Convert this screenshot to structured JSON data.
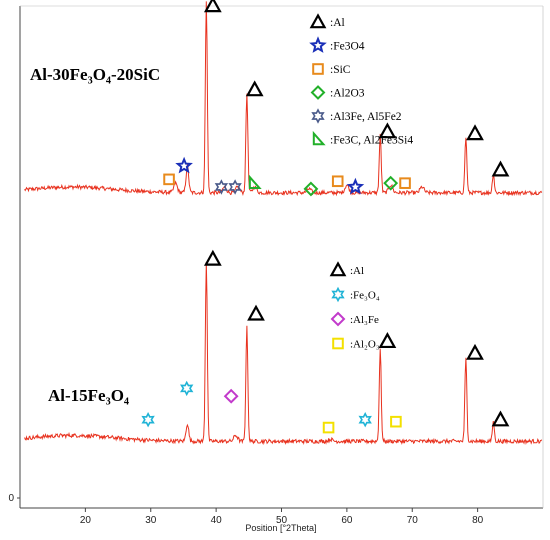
{
  "chart_data": {
    "type": "line",
    "xlabel": "Position [°2Theta]",
    "xlim": [
      10,
      90
    ],
    "xticks": [
      20,
      30,
      40,
      50,
      60,
      70,
      80
    ],
    "yticks": [
      0
    ],
    "line_color": "#e8321f",
    "series": [
      {
        "name": "Al-30Fe3O4-20SiC",
        "baseline": 0.08,
        "noise": 0.01,
        "peaks": [
          {
            "x": 33.8,
            "h": 0.05,
            "w": 0.25
          },
          {
            "x": 35.6,
            "h": 0.14,
            "w": 0.2
          },
          {
            "x": 38.5,
            "h": 1.0,
            "w": 0.15
          },
          {
            "x": 41.3,
            "h": 0.03,
            "w": 0.3
          },
          {
            "x": 43.3,
            "h": 0.03,
            "w": 0.3
          },
          {
            "x": 44.7,
            "h": 0.52,
            "w": 0.15
          },
          {
            "x": 45.9,
            "h": 0.03,
            "w": 0.3
          },
          {
            "x": 54.2,
            "h": 0.02,
            "w": 0.3
          },
          {
            "x": 60.0,
            "h": 0.04,
            "w": 0.3
          },
          {
            "x": 65.1,
            "h": 0.3,
            "w": 0.15
          },
          {
            "x": 66.7,
            "h": 0.04,
            "w": 0.3
          },
          {
            "x": 71.5,
            "h": 0.03,
            "w": 0.3
          },
          {
            "x": 78.2,
            "h": 0.29,
            "w": 0.15
          },
          {
            "x": 82.4,
            "h": 0.1,
            "w": 0.15
          }
        ],
        "markers": [
          {
            "x": 39.5,
            "y": 1.06,
            "shape": "triangle",
            "color": "#000000"
          },
          {
            "x": 45.9,
            "y": 0.62,
            "shape": "triangle",
            "color": "#000000"
          },
          {
            "x": 66.2,
            "y": 0.4,
            "shape": "triangle",
            "color": "#000000"
          },
          {
            "x": 79.6,
            "y": 0.39,
            "shape": "triangle",
            "color": "#000000"
          },
          {
            "x": 83.5,
            "y": 0.2,
            "shape": "triangle",
            "color": "#000000"
          },
          {
            "x": 35.1,
            "y": 0.22,
            "shape": "star",
            "color": "#1a2fb8"
          },
          {
            "x": 61.3,
            "y": 0.11,
            "shape": "star",
            "color": "#1a2fb8"
          },
          {
            "x": 32.8,
            "y": 0.15,
            "shape": "square",
            "color": "#e88a1c"
          },
          {
            "x": 58.6,
            "y": 0.14,
            "shape": "square",
            "color": "#e88a1c"
          },
          {
            "x": 68.9,
            "y": 0.13,
            "shape": "square",
            "color": "#e88a1c"
          },
          {
            "x": 54.5,
            "y": 0.1,
            "shape": "diamond",
            "color": "#22b02a"
          },
          {
            "x": 66.7,
            "y": 0.13,
            "shape": "diamond",
            "color": "#22b02a"
          },
          {
            "x": 40.8,
            "y": 0.11,
            "shape": "hexstar",
            "color": "#4a5a8a"
          },
          {
            "x": 42.9,
            "y": 0.11,
            "shape": "hexstar",
            "color": "#4a5a8a"
          },
          {
            "x": 45.8,
            "y": 0.13,
            "shape": "righttri",
            "color": "#22b02a"
          }
        ]
      },
      {
        "name": "Al-15Fe3O4",
        "baseline": 0.07,
        "noise": 0.01,
        "peaks": [
          {
            "x": 35.6,
            "h": 0.09,
            "w": 0.2
          },
          {
            "x": 38.5,
            "h": 0.92,
            "w": 0.15
          },
          {
            "x": 43.0,
            "h": 0.03,
            "w": 0.3
          },
          {
            "x": 44.7,
            "h": 0.58,
            "w": 0.15
          },
          {
            "x": 57.5,
            "h": 0.01,
            "w": 0.3
          },
          {
            "x": 65.1,
            "h": 0.47,
            "w": 0.15
          },
          {
            "x": 78.2,
            "h": 0.42,
            "w": 0.15
          },
          {
            "x": 82.4,
            "h": 0.1,
            "w": 0.15
          }
        ],
        "markers": [
          {
            "x": 39.5,
            "y": 1.0,
            "shape": "triangle",
            "color": "#000000"
          },
          {
            "x": 46.1,
            "y": 0.72,
            "shape": "triangle",
            "color": "#000000"
          },
          {
            "x": 66.2,
            "y": 0.58,
            "shape": "triangle",
            "color": "#000000"
          },
          {
            "x": 79.6,
            "y": 0.52,
            "shape": "triangle",
            "color": "#000000"
          },
          {
            "x": 83.5,
            "y": 0.18,
            "shape": "triangle",
            "color": "#000000"
          },
          {
            "x": 29.6,
            "y": 0.18,
            "shape": "hexstar",
            "color": "#1fb3d6"
          },
          {
            "x": 35.5,
            "y": 0.34,
            "shape": "hexstar",
            "color": "#1fb3d6"
          },
          {
            "x": 62.8,
            "y": 0.18,
            "shape": "hexstar",
            "color": "#1fb3d6"
          },
          {
            "x": 42.3,
            "y": 0.3,
            "shape": "diamond",
            "color": "#c23acb"
          },
          {
            "x": 57.2,
            "y": 0.14,
            "shape": "square",
            "color": "#f3e000"
          },
          {
            "x": 67.5,
            "y": 0.17,
            "shape": "square",
            "color": "#f3e000"
          }
        ]
      }
    ],
    "legends": [
      {
        "entries": [
          {
            "shape": "triangle",
            "color": "#000000",
            "label": ":Al"
          },
          {
            "shape": "star",
            "color": "#1a2fb8",
            "label": ":Fe3O4"
          },
          {
            "shape": "square",
            "color": "#e88a1c",
            "label": ":SiC"
          },
          {
            "shape": "diamond",
            "color": "#22b02a",
            "label": ":Al2O3"
          },
          {
            "shape": "hexstar",
            "color": "#4a5a8a",
            "label": ":Al3Fe, Al5Fe2"
          },
          {
            "shape": "righttri",
            "color": "#22b02a",
            "label": ":Fe3C, Al2Fe3Si4"
          }
        ]
      },
      {
        "entries": [
          {
            "shape": "triangle",
            "color": "#000000",
            "label": ":Al"
          },
          {
            "shape": "hexstar",
            "color": "#1fb3d6",
            "label": ":Fe₃O₄"
          },
          {
            "shape": "diamond",
            "color": "#c23acb",
            "label": ":Al₃Fe"
          },
          {
            "shape": "square",
            "color": "#f3e000",
            "label": ":Al₂O₃"
          }
        ]
      }
    ],
    "sample_labels": [
      "Al-30Fe₃O₄-20SiC",
      "Al-15Fe₃O₄"
    ]
  }
}
